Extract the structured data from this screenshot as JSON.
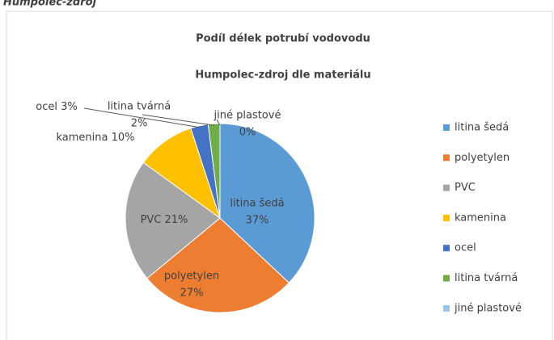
{
  "header_text": "Humpolec-zdroj",
  "chart_data": {
    "type": "pie",
    "title": [
      "Podíl délek potrubí vodovodu",
      "Humpolec-zdroj dle materiálu"
    ],
    "categories": [
      "litina šedá",
      "polyetylen",
      "PVC",
      "kamenina",
      "ocel",
      "litina tvárná",
      "jiné plastové"
    ],
    "values": [
      37,
      27,
      21,
      10,
      3,
      2,
      0
    ],
    "value_labels": [
      "37%",
      "27%",
      "21%",
      "10%",
      "3%",
      "2%",
      "0%"
    ],
    "colors": [
      "#5b9bd5",
      "#ed7d31",
      "#a5a5a5",
      "#ffc000",
      "#4472c4",
      "#70ad47",
      "#9dc3e6"
    ],
    "legend": "right"
  }
}
